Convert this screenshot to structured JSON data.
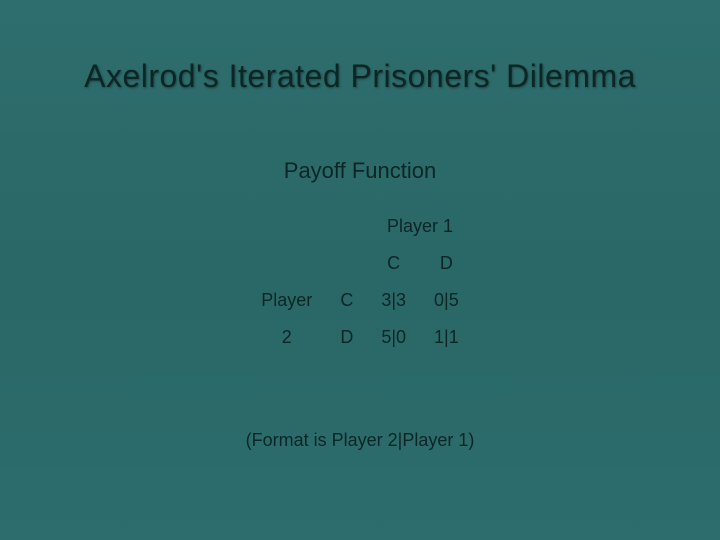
{
  "slide": {
    "title": "Axelrod's Iterated Prisoners' Dilemma",
    "subtitle": "Payoff Function",
    "footnote": "(Format is Player 2|Player 1)",
    "background_gradient": [
      "#2f6e6e",
      "#2a6767",
      "#2d6d6d"
    ],
    "text_color": "#0c2626",
    "title_fontsize": 32,
    "subtitle_fontsize": 22,
    "body_fontsize": 18
  },
  "matrix": {
    "type": "table",
    "col_player_label": "Player 1",
    "row_player_label_line1": "Player",
    "row_player_label_line2": "2",
    "columns": [
      "C",
      "D"
    ],
    "rows": [
      "C",
      "D"
    ],
    "cells": {
      "r0c0": "3|3",
      "r0c1": "0|5",
      "r1c0": "5|0",
      "r1c1": "1|1"
    }
  }
}
